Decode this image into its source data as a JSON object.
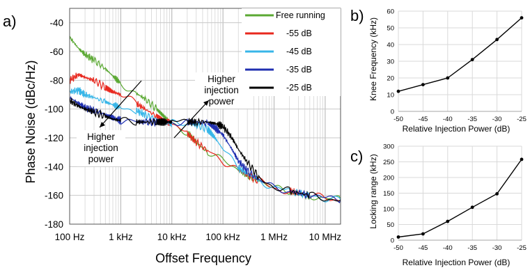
{
  "panel_labels": {
    "a": "a)",
    "b": "b)",
    "c": "c)"
  },
  "annotations": {
    "higher_injection_power_right": [
      "Higher",
      "injection",
      "power"
    ],
    "higher_injection_power_left": [
      "Higher",
      "injection",
      "power"
    ]
  },
  "colors": {
    "free_running": "#5aa832",
    "m55": "#e8281e",
    "m45": "#38b6e8",
    "m35": "#1f2fb0",
    "m25": "#000000"
  },
  "chart_data": [
    {
      "id": "a",
      "type": "line",
      "xlabel": "Offset Frequency",
      "ylabel": "Phase Noise (dBc/Hz)",
      "xscale": "log",
      "xlim": [
        100,
        20000000
      ],
      "ylim": [
        -180,
        -30
      ],
      "xticks": [
        100,
        1000,
        10000,
        100000,
        1000000,
        10000000
      ],
      "xtick_labels": [
        "100 Hz",
        "1 kHz",
        "10 kHz",
        "100 kHz",
        "1 MHz",
        "10 MHz"
      ],
      "yticks": [
        -180,
        -160,
        -140,
        -120,
        -100,
        -80,
        -60,
        -40
      ],
      "ytick_labels": [
        "-180",
        "-160",
        "-140",
        "-120",
        "-100",
        "-80",
        "-60",
        "-40"
      ],
      "grid": true,
      "legend": "top-right",
      "series": [
        {
          "name": "Free running",
          "color_key": "free_running",
          "x": [
            100,
            150,
            200,
            300,
            500,
            700,
            1000,
            2000,
            3000,
            5000,
            7000,
            10000,
            20000,
            30000,
            50000,
            100000,
            200000,
            300000,
            500000,
            1000000,
            2000000,
            3000000,
            5000000,
            10000000,
            20000000
          ],
          "y": [
            -50,
            -58,
            -62,
            -66,
            -72,
            -77,
            -82,
            -89,
            -93,
            -100,
            -105,
            -110,
            -116,
            -123,
            -130,
            -136,
            -142,
            -146,
            -149,
            -155,
            -158,
            -159,
            -160,
            -162,
            -163
          ]
        },
        {
          "name": "-55 dB",
          "color_key": "m55",
          "x": [
            100,
            150,
            200,
            300,
            500,
            700,
            1000,
            2000,
            3000,
            5000,
            7000,
            10000,
            20000,
            30000,
            50000,
            100000,
            200000,
            300000,
            500000,
            1000000,
            2000000,
            3000000,
            5000000,
            10000000,
            20000000
          ],
          "y": [
            -80,
            -76,
            -78,
            -80,
            -85,
            -88,
            -90,
            -96,
            -100,
            -105,
            -108,
            -110,
            -117,
            -123,
            -129,
            -136,
            -142,
            -146,
            -150,
            -155,
            -157,
            -158,
            -160,
            -162,
            -163
          ]
        },
        {
          "name": "-45 dB",
          "color_key": "m45",
          "x": [
            100,
            150,
            200,
            300,
            500,
            700,
            1000,
            2000,
            3000,
            5000,
            7000,
            10000,
            20000,
            30000,
            50000,
            70000,
            100000,
            200000,
            300000,
            500000,
            1000000,
            2000000,
            5000000,
            10000000,
            20000000
          ],
          "y": [
            -88,
            -87,
            -90,
            -92,
            -95,
            -97,
            -99,
            -101,
            -104,
            -107,
            -109,
            -110,
            -110,
            -111,
            -114,
            -120,
            -128,
            -141,
            -145,
            -149,
            -155,
            -157,
            -160,
            -162,
            -163
          ]
        },
        {
          "name": "-35 dB",
          "color_key": "m35",
          "x": [
            100,
            150,
            200,
            300,
            500,
            700,
            1000,
            2000,
            3000,
            5000,
            7000,
            10000,
            20000,
            30000,
            50000,
            70000,
            100000,
            150000,
            200000,
            300000,
            500000,
            1000000,
            2000000,
            5000000,
            10000000,
            20000000
          ],
          "y": [
            -92,
            -96,
            -99,
            -101,
            -104,
            -106,
            -108,
            -109,
            -109,
            -109,
            -109,
            -109,
            -109,
            -109,
            -110,
            -113,
            -118,
            -128,
            -136,
            -143,
            -149,
            -155,
            -157,
            -160,
            -162,
            -163
          ]
        },
        {
          "name": "-25 dB",
          "color_key": "m25",
          "x": [
            100,
            150,
            200,
            300,
            500,
            700,
            1000,
            2000,
            3000,
            5000,
            7000,
            10000,
            20000,
            30000,
            50000,
            70000,
            100000,
            150000,
            200000,
            300000,
            500000,
            1000000,
            2000000,
            5000000,
            10000000,
            20000000
          ],
          "y": [
            -94,
            -98,
            -100,
            -102,
            -105,
            -107,
            -108,
            -109,
            -109,
            -109,
            -109,
            -109,
            -109,
            -109,
            -109,
            -110,
            -112,
            -120,
            -128,
            -137,
            -147,
            -154,
            -157,
            -160,
            -162,
            -163
          ]
        }
      ]
    },
    {
      "id": "b",
      "type": "line",
      "xlabel": "Relative Injection Power (dB)",
      "ylabel": "Knee Frequency (kHz)",
      "xlim": [
        -50,
        -25
      ],
      "ylim": [
        0,
        60
      ],
      "xticks": [
        -50,
        -45,
        -40,
        -35,
        -30,
        -25
      ],
      "yticks": [
        0,
        10,
        20,
        30,
        40,
        50,
        60
      ],
      "grid": true,
      "series": [
        {
          "x": [
            -50,
            -45,
            -40,
            -35,
            -30,
            -25
          ],
          "y": [
            12,
            16,
            20,
            31,
            43,
            56
          ]
        }
      ]
    },
    {
      "id": "c",
      "type": "line",
      "xlabel": "Relative Injection Power (dB)",
      "ylabel": "Locking range (kHz)",
      "xlim": [
        -50,
        -25
      ],
      "ylim": [
        0,
        300
      ],
      "xticks": [
        -50,
        -45,
        -40,
        -35,
        -30,
        -25
      ],
      "yticks": [
        0,
        50,
        100,
        150,
        200,
        250,
        300
      ],
      "grid": true,
      "series": [
        {
          "x": [
            -50,
            -45,
            -40,
            -35,
            -30,
            -25
          ],
          "y": [
            10,
            20,
            60,
            105,
            148,
            258
          ]
        }
      ]
    }
  ]
}
